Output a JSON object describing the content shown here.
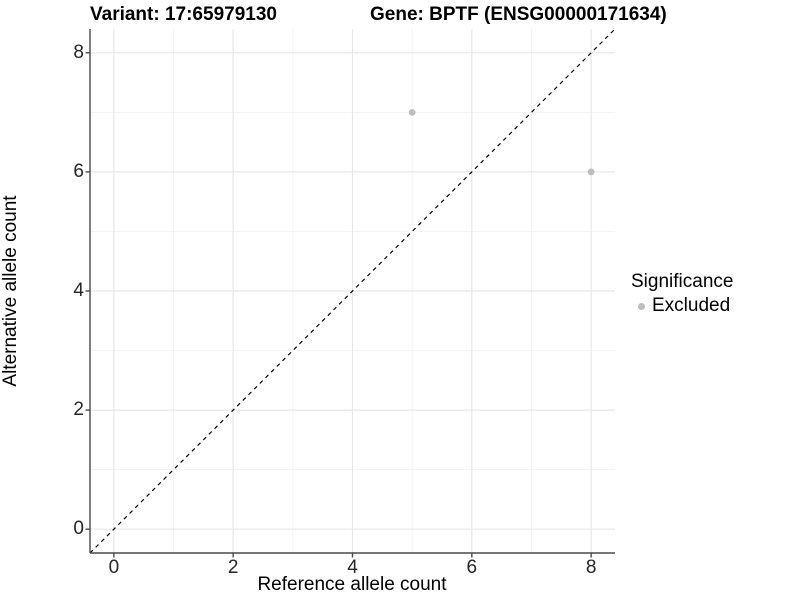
{
  "chart_data": {
    "type": "scatter",
    "title_left": "Variant: 17:65979130",
    "title_right": "Gene: BPTF (ENSG00000171634)",
    "xlabel": "Reference allele count",
    "ylabel": "Alternative allele count",
    "xlim": [
      -0.4,
      8.4
    ],
    "ylim": [
      -0.4,
      8.4
    ],
    "xticks": [
      0,
      2,
      4,
      6,
      8
    ],
    "yticks": [
      0,
      2,
      4,
      6,
      8
    ],
    "minor_xticks": [
      1,
      3,
      5,
      7
    ],
    "minor_yticks": [
      1,
      3,
      5,
      7
    ],
    "grid": true,
    "reference_line": {
      "kind": "identity",
      "style": "dashed",
      "color": "#000000"
    },
    "series": [
      {
        "name": "Excluded",
        "color": "#bebebe",
        "points": [
          {
            "x": 5,
            "y": 7
          },
          {
            "x": 8,
            "y": 6
          }
        ]
      }
    ],
    "legend": {
      "title": "Significance",
      "position": "right",
      "entries": [
        {
          "label": "Excluded",
          "color": "#bebebe"
        }
      ]
    },
    "colors": {
      "major_grid": "#e8e8e8",
      "minor_grid": "#f2f2f2",
      "axis_line": "#4a4a4a",
      "tick_label": "#262626",
      "point": "#bebebe"
    }
  }
}
